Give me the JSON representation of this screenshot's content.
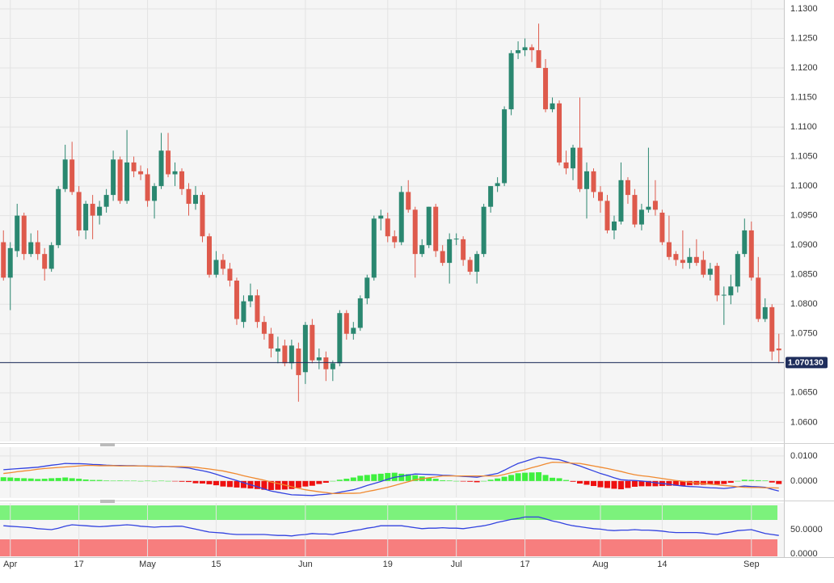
{
  "chart_data": [
    {
      "type": "candlestick",
      "categories": [
        null,
        "Apr",
        null,
        null,
        null,
        null,
        null,
        null,
        null,
        null,
        null,
        "17",
        null,
        null,
        null,
        null,
        null,
        null,
        null,
        null,
        null,
        "May",
        null,
        null,
        null,
        null,
        null,
        null,
        null,
        null,
        null,
        "15",
        null,
        null,
        null,
        null,
        null,
        null,
        null,
        null,
        null,
        null,
        null,
        null,
        "Jun",
        null,
        null,
        null,
        null,
        null,
        null,
        null,
        null,
        null,
        null,
        null,
        "19",
        null,
        null,
        null,
        null,
        null,
        null,
        null,
        null,
        null,
        "Jul",
        null,
        null,
        null,
        null,
        null,
        null,
        null,
        null,
        null,
        "17",
        null,
        null,
        null,
        null,
        null,
        null,
        null,
        null,
        null,
        null,
        "Aug",
        null,
        null,
        null,
        null,
        null,
        null,
        null,
        null,
        "14",
        null,
        null,
        null,
        null,
        null,
        null,
        null,
        null,
        null,
        null,
        null,
        null,
        "Sep",
        null,
        null,
        null,
        null
      ],
      "open": [
        1.0905,
        1.0845,
        1.089,
        1.095,
        1.0885,
        1.0905,
        1.0885,
        1.086,
        1.09,
        1.0995,
        1.1045,
        1.099,
        1.0925,
        1.097,
        1.095,
        1.0965,
        1.0985,
        1.1045,
        1.0975,
        1.104,
        1.1025,
        1.102,
        1.0975,
        1.1,
        1.106,
        1.102,
        1.1025,
        1.0995,
        1.097,
        1.0985,
        1.0915,
        1.085,
        1.0875,
        1.086,
        1.084,
        1.077,
        1.0805,
        1.0815,
        1.077,
        1.075,
        1.072,
        1.073,
        1.07,
        1.0725,
        1.0685,
        1.0765,
        1.0705,
        1.071,
        1.069,
        1.07,
        1.0785,
        1.075,
        1.076,
        1.081,
        1.0845,
        1.0945,
        1.0945,
        1.0915,
        1.0905,
        1.099,
        1.096,
        1.0885,
        1.09,
        1.0965,
        1.089,
        1.087,
        1.091,
        1.091,
        1.0875,
        1.0855,
        1.0885,
        1.0965,
        1.1,
        1.1005,
        1.113,
        1.1225,
        1.123,
        1.1235,
        1.123,
        1.12,
        1.113,
        1.114,
        1.104,
        1.103,
        1.1065,
        1.0995,
        1.1025,
        1.099,
        1.0975,
        1.0925,
        1.094,
        1.101,
        1.0985,
        1.0935,
        1.096,
        1.0975,
        1.0955,
        1.0905,
        1.0885,
        1.0875,
        1.087,
        1.088,
        1.0875,
        1.085,
        1.0865,
        1.0815,
        1.0815,
        1.083,
        1.0885,
        1.0925,
        1.0845,
        1.0775,
        1.0795,
        1.0725
      ],
      "high": [
        1.0925,
        1.0905,
        1.097,
        1.0955,
        1.092,
        1.0925,
        1.0895,
        1.0905,
        1.1,
        1.107,
        1.1075,
        1.1,
        1.0975,
        1.0985,
        1.0975,
        1.0995,
        1.106,
        1.105,
        1.1095,
        1.105,
        1.1035,
        1.103,
        1.1005,
        1.109,
        1.109,
        1.104,
        1.103,
        1.1005,
        1.1,
        1.099,
        1.092,
        1.089,
        1.0885,
        1.087,
        1.0845,
        1.0815,
        1.0835,
        1.0825,
        1.078,
        1.076,
        1.0745,
        1.074,
        1.074,
        1.0735,
        1.077,
        1.0775,
        1.0725,
        1.072,
        1.0705,
        1.079,
        1.079,
        1.077,
        1.0815,
        1.085,
        1.095,
        1.096,
        1.0955,
        1.0925,
        1.1,
        1.101,
        1.0965,
        1.091,
        1.0965,
        1.097,
        1.09,
        1.092,
        1.092,
        1.0915,
        1.088,
        1.089,
        1.097,
        1.1,
        1.1015,
        1.1135,
        1.123,
        1.1245,
        1.125,
        1.124,
        1.1275,
        1.1215,
        1.115,
        1.1145,
        1.106,
        1.107,
        1.115,
        1.104,
        1.103,
        1.1,
        1.0985,
        1.095,
        1.104,
        1.1015,
        1.0995,
        1.097,
        1.1065,
        1.101,
        1.096,
        1.095,
        1.089,
        1.0925,
        1.0895,
        1.091,
        1.089,
        1.087,
        1.087,
        1.083,
        1.085,
        1.089,
        1.0945,
        1.094,
        1.088,
        1.081,
        1.08,
        1.075
      ],
      "low": [
        1.084,
        1.079,
        1.088,
        1.0875,
        1.088,
        1.0875,
        1.084,
        1.0855,
        1.0895,
        1.099,
        1.0985,
        1.0915,
        1.091,
        1.091,
        1.0935,
        1.0955,
        1.0975,
        1.097,
        1.097,
        1.1015,
        1.101,
        1.0965,
        1.0945,
        1.0995,
        1.1015,
        1.1,
        1.0985,
        1.095,
        1.096,
        1.0905,
        1.0845,
        1.0845,
        1.085,
        1.083,
        1.0765,
        1.076,
        1.0795,
        1.076,
        1.074,
        1.071,
        1.07,
        1.0695,
        1.069,
        1.0635,
        1.0665,
        1.07,
        1.069,
        1.067,
        1.067,
        1.0695,
        1.074,
        1.074,
        1.0755,
        1.08,
        1.084,
        1.0925,
        1.0905,
        1.0895,
        1.09,
        1.0955,
        1.0845,
        1.088,
        1.0895,
        1.088,
        1.0865,
        1.0835,
        1.09,
        1.0865,
        1.085,
        1.0835,
        1.088,
        1.0955,
        1.099,
        1.1,
        1.112,
        1.1215,
        1.122,
        1.121,
        1.12,
        1.1125,
        1.1125,
        1.1035,
        1.102,
        1.101,
        1.099,
        1.0945,
        1.098,
        1.0955,
        1.092,
        1.091,
        1.0935,
        1.097,
        1.093,
        1.0925,
        1.0955,
        1.095,
        1.09,
        1.0875,
        1.0865,
        1.086,
        1.086,
        1.0865,
        1.0845,
        1.084,
        1.0805,
        1.0765,
        1.08,
        1.082,
        1.088,
        1.084,
        1.077,
        1.077,
        1.0705,
        1.07
      ],
      "close": [
        1.0845,
        1.0895,
        1.095,
        1.0885,
        1.0905,
        1.0885,
        1.086,
        1.09,
        1.0995,
        1.1045,
        1.099,
        1.0925,
        1.097,
        1.095,
        1.0965,
        1.0985,
        1.1045,
        1.0975,
        1.104,
        1.1025,
        1.102,
        1.0975,
        1.1,
        1.106,
        1.102,
        1.1025,
        1.0995,
        1.097,
        1.0985,
        1.0915,
        1.085,
        1.0875,
        1.086,
        1.084,
        1.0775,
        1.0805,
        1.0815,
        1.077,
        1.075,
        1.0725,
        1.0725,
        1.07,
        1.073,
        1.068,
        1.0765,
        1.0705,
        1.071,
        1.069,
        1.07,
        1.0785,
        1.075,
        1.076,
        1.081,
        1.0845,
        1.0945,
        1.095,
        1.0915,
        1.0905,
        1.099,
        1.096,
        1.0885,
        1.09,
        1.0965,
        1.089,
        1.087,
        1.091,
        1.0911,
        1.0875,
        1.0855,
        1.0885,
        1.0965,
        1.1,
        1.1005,
        1.113,
        1.1225,
        1.123,
        1.1235,
        1.123,
        1.12,
        1.113,
        1.114,
        1.104,
        1.103,
        1.1065,
        1.0995,
        1.1025,
        1.099,
        1.0975,
        1.0925,
        1.094,
        1.101,
        1.0985,
        1.0935,
        1.096,
        1.0965,
        1.096,
        1.0905,
        1.088,
        1.0875,
        1.087,
        1.088,
        1.087,
        1.085,
        1.086,
        1.0815,
        1.0816,
        1.083,
        1.0885,
        1.0925,
        1.0845,
        1.0775,
        1.0795,
        1.072,
        1.0722
      ],
      "up_color": "#2a8770",
      "down_color": "#de5a4c",
      "ylim": [
        1.0569,
        1.1315
      ],
      "yticks": [
        {
          "value": 1.06,
          "label": "1.0600"
        },
        {
          "value": 1.065,
          "label": "1.0650"
        },
        {
          "value": 1.07,
          "label": "1.0700"
        },
        {
          "value": 1.075,
          "label": "1.0750"
        },
        {
          "value": 1.08,
          "label": "1.0800"
        },
        {
          "value": 1.085,
          "label": "1.0850"
        },
        {
          "value": 1.09,
          "label": "1.0900"
        },
        {
          "value": 1.095,
          "label": "1.0950"
        },
        {
          "value": 1.1,
          "label": "1.1000"
        },
        {
          "value": 1.105,
          "label": "1.1050"
        },
        {
          "value": 1.11,
          "label": "1.1100"
        },
        {
          "value": 1.115,
          "label": "1.1150"
        },
        {
          "value": 1.12,
          "label": "1.1200"
        },
        {
          "value": 1.125,
          "label": "1.1250"
        },
        {
          "value": 1.13,
          "label": "1.1300"
        }
      ],
      "last_price": {
        "value": 1.07013,
        "label": "1.070130"
      },
      "last_price_color": "#1f2e5c",
      "grid": true
    },
    {
      "type": "macd",
      "series": [
        {
          "color": "#3242e0",
          "values": [
            0.0045,
            0.0047,
            0.0049,
            0.0051,
            0.0053,
            0.0055,
            0.0059,
            0.0063,
            0.0066,
            0.007,
            0.0069,
            0.0069,
            0.0068,
            0.0066,
            0.0065,
            0.0063,
            0.0062,
            0.0062,
            0.0061,
            0.0061,
            0.006,
            0.006,
            0.0059,
            0.0059,
            0.0058,
            0.0056,
            0.0054,
            0.0052,
            0.0046,
            0.0041,
            0.0035,
            0.0027,
            0.0018,
            0.001,
            0.0002,
            -0.0007,
            -0.0015,
            -0.0023,
            -0.0032,
            -0.004,
            -0.0045,
            -0.005,
            -0.0055,
            -0.0056,
            -0.0057,
            -0.0058,
            -0.0055,
            -0.0053,
            -0.005,
            -0.0045,
            -0.004,
            -0.0035,
            -0.0027,
            -0.0018,
            -0.001,
            -0.0002,
            0.0007,
            0.0015,
            0.0019,
            0.0024,
            0.0028,
            0.0027,
            0.0026,
            0.0025,
            0.0023,
            0.0022,
            0.002,
            0.0018,
            0.0017,
            0.0015,
            0.002,
            0.0025,
            0.003,
            0.0043,
            0.0057,
            0.007,
            0.0078,
            0.0087,
            0.0095,
            0.0092,
            0.0088,
            0.0085,
            0.0077,
            0.0068,
            0.006,
            0.005,
            0.004,
            0.003,
            0.0022,
            0.0013,
            0.0005,
            0.0003,
            0.0002,
            0,
            -0.0003,
            -0.0007,
            -0.001,
            -0.0013,
            -0.0017,
            -0.002,
            -0.0022,
            -0.0023,
            -0.0025,
            -0.0027,
            -0.0028,
            -0.003,
            -0.0027,
            -0.0023,
            -0.002,
            -0.0022,
            -0.0023,
            -0.0025,
            -0.0033,
            -0.004
          ]
        },
        {
          "color": "#f08a30",
          "values": [
            0.003,
            0.0033,
            0.0037,
            0.004,
            0.0043,
            0.0047,
            0.005,
            0.0052,
            0.0054,
            0.0056,
            0.0058,
            0.006,
            0.0062,
            0.0062,
            0.0061,
            0.0061,
            0.0061,
            0.006,
            0.006,
            0.006,
            0.006,
            0.0059,
            0.0059,
            0.0058,
            0.0058,
            0.0057,
            0.0057,
            0.0056,
            0.0055,
            0.0051,
            0.0048,
            0.0044,
            0.004,
            0.0034,
            0.0028,
            0.0021,
            0.0015,
            0.0009,
            0.0003,
            -0.0004,
            -0.001,
            -0.0016,
            -0.0023,
            -0.0029,
            -0.0035,
            -0.0039,
            -0.0043,
            -0.0046,
            -0.005,
            -0.005,
            -0.0049,
            -0.0049,
            -0.0048,
            -0.0042,
            -0.0037,
            -0.0031,
            -0.0025,
            -0.0018,
            -0.001,
            -0.0003,
            0.0005,
            0.0009,
            0.0013,
            0.0016,
            0.002,
            0.002,
            0.002,
            0.002,
            0.002,
            0.002,
            0.002,
            0.002,
            0.002,
            0.0026,
            0.0033,
            0.0039,
            0.0045,
            0.0053,
            0.006,
            0.0068,
            0.0075,
            0.0074,
            0.0073,
            0.0071,
            0.007,
            0.0065,
            0.006,
            0.0055,
            0.005,
            0.0044,
            0.0038,
            0.0031,
            0.0025,
            0.0021,
            0.0018,
            0.0014,
            0.001,
            0.0006,
            0.0002,
            -0.0001,
            -0.0005,
            -0.0008,
            -0.001,
            -0.0013,
            -0.0015,
            -0.0018,
            -0.002,
            -0.0023,
            -0.0025,
            -0.0026,
            -0.0026,
            -0.0027,
            -0.0027,
            -0.0028
          ]
        }
      ],
      "histogram": [
        0.0015,
        0.0014,
        0.0012,
        0.0011,
        0.001,
        0.0008,
        0.0009,
        0.0011,
        0.0012,
        0.0014,
        0.0011,
        0.0009,
        0.0006,
        0.0004,
        0.0004,
        0.0002,
        0.0001,
        0.0002,
        0.0001,
        0.0001,
        0,
        0.0001,
        0,
        0.0001,
        0,
        -0.0001,
        -0.0003,
        -0.0004,
        -0.0009,
        -0.001,
        -0.0013,
        -0.0017,
        -0.0022,
        -0.0024,
        -0.0026,
        -0.0028,
        -0.003,
        -0.0032,
        -0.0035,
        -0.0036,
        -0.0035,
        -0.0034,
        -0.0032,
        -0.0027,
        -0.0022,
        -0.0019,
        -0.0012,
        -0.0007,
        0,
        0.0005,
        0.0009,
        0.0014,
        0.0021,
        0.0024,
        0.0027,
        0.0029,
        0.0032,
        0.0033,
        0.0029,
        0.0027,
        0.0023,
        0.0018,
        0.0013,
        0.0009,
        0.0003,
        0.0002,
        0,
        -0.0002,
        -0.0003,
        -0.0005,
        0,
        0.0005,
        0.001,
        0.0017,
        0.0024,
        0.0031,
        0.0033,
        0.0034,
        0.0035,
        0.0024,
        0.0013,
        0.0011,
        0.0004,
        -0.0003,
        -0.001,
        -0.0015,
        -0.002,
        -0.0025,
        -0.0028,
        -0.0031,
        -0.0033,
        -0.0028,
        -0.0023,
        -0.0021,
        -0.0021,
        -0.0021,
        -0.002,
        -0.0019,
        -0.0019,
        -0.0019,
        -0.0017,
        -0.0015,
        -0.0015,
        -0.0014,
        -0.0013,
        -0.0012,
        -0.0007,
        0,
        0.0005,
        0.0004,
        0.0003,
        0.0002,
        -0.0006,
        -0.0012
      ],
      "positive_color": "#3ef03e",
      "negative_color": "#ee1010",
      "ylim": [
        -0.0065,
        0.0135
      ],
      "yticks": [
        {
          "value": 0,
          "label": "0.0000"
        },
        {
          "value": 0.01,
          "label": "0.0100"
        }
      ]
    },
    {
      "type": "line",
      "series": [
        {
          "color": "#3242e0",
          "values": [
            58,
            57,
            56,
            55,
            54,
            52,
            51,
            50,
            53,
            57,
            60,
            59,
            58,
            57,
            56,
            57,
            58,
            59,
            60,
            59,
            57,
            56,
            55,
            56,
            56,
            57,
            57,
            54,
            51,
            48,
            45,
            44,
            43,
            41,
            40,
            40,
            40,
            40,
            40,
            39,
            38,
            38,
            37,
            39,
            40,
            42,
            41,
            41,
            40,
            43,
            45,
            48,
            50,
            53,
            55,
            58,
            58,
            58,
            58,
            56,
            54,
            52,
            53,
            53,
            54,
            53,
            53,
            52,
            54,
            56,
            58,
            61,
            65,
            68,
            71,
            73,
            76,
            76,
            76,
            72,
            68,
            65,
            61,
            58,
            56,
            54,
            52,
            51,
            49,
            48,
            49,
            49,
            50,
            49,
            49,
            48,
            47,
            45,
            44,
            44,
            44,
            44,
            43,
            41,
            40,
            43,
            45,
            48,
            49,
            50,
            46,
            42,
            40,
            38
          ]
        }
      ],
      "overbought": 70,
      "oversold": 30,
      "overbought_color": "#7cf27c",
      "oversold_color": "#f77e7e",
      "ylim": [
        -5,
        105
      ],
      "yticks": [
        {
          "value": 0,
          "label": "0.0000"
        },
        {
          "value": 50,
          "label": "50.0000"
        }
      ]
    }
  ]
}
